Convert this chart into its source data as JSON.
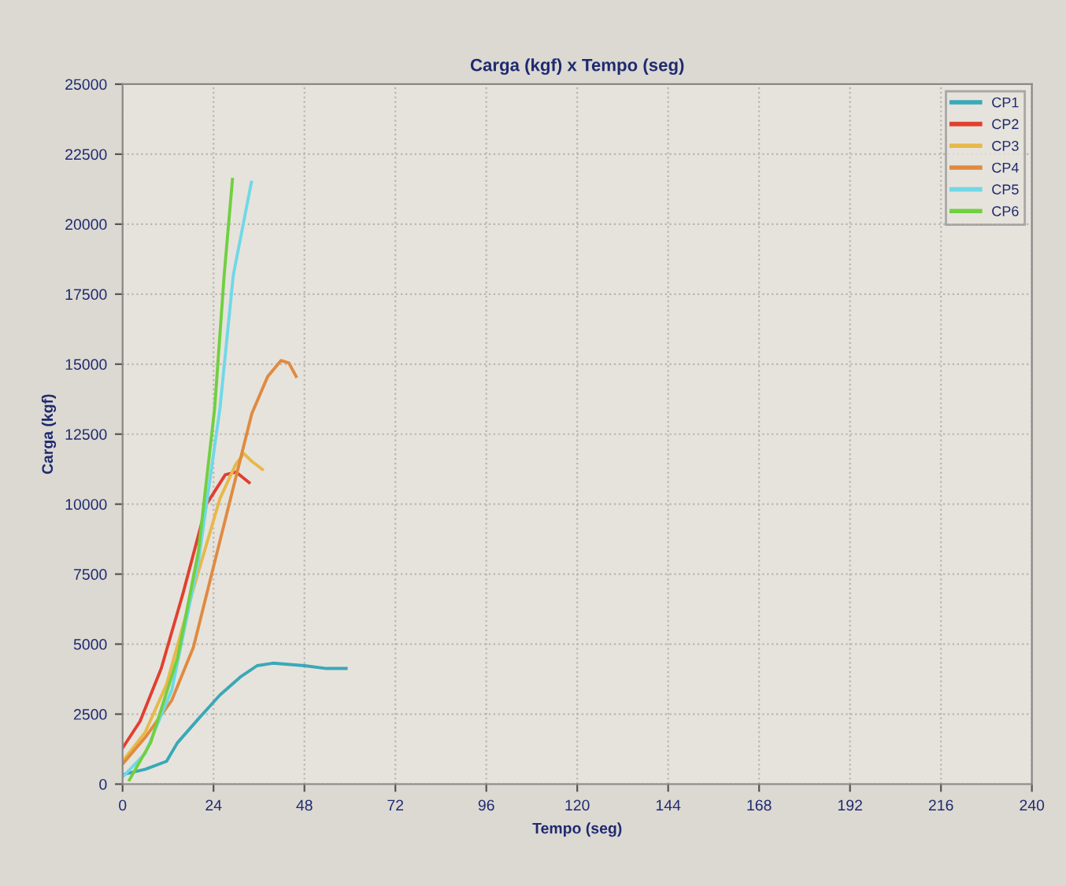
{
  "chart_data": {
    "type": "line",
    "title": "Carga (kgf) x Tempo (seg)",
    "xlabel": "Tempo (seg)",
    "ylabel": "Carga (kgf)",
    "xlim": [
      0,
      240
    ],
    "xticks": [
      0,
      24,
      48,
      72,
      96,
      120,
      144,
      168,
      192,
      216,
      240
    ],
    "ylim": [
      0,
      25000
    ],
    "yticks": [
      0,
      2500,
      5000,
      7500,
      10000,
      12500,
      15000,
      17500,
      20000,
      22500,
      25000
    ],
    "grid": true,
    "legend": "top right",
    "line_style": "solid",
    "marker": "none",
    "series": [
      {
        "name": "CP1",
        "color": "#3aa8b8",
        "x": [
          0,
          6,
          11.6,
          14.5,
          20,
          25.7,
          31.3,
          35.5,
          39.7,
          48,
          53.8,
          59
        ],
        "values": [
          340,
          530,
          815,
          1480,
          2330,
          3185,
          3850,
          4230,
          4320,
          4230,
          4130,
          4130
        ]
      },
      {
        "name": "CP2",
        "color": "#e04030",
        "x": [
          0,
          4.6,
          10.2,
          15.9,
          22.2,
          27.1,
          29.9,
          33.4
        ],
        "values": [
          1290,
          2240,
          4130,
          6790,
          10010,
          11050,
          11150,
          10770
        ]
      },
      {
        "name": "CP3",
        "color": "#e8b848",
        "x": [
          0,
          6,
          11.6,
          18.7,
          25.7,
          29.9,
          32,
          34.1,
          36.9
        ],
        "values": [
          815,
          1860,
          3560,
          6980,
          10200,
          11430,
          11810,
          11530,
          11240
        ]
      },
      {
        "name": "CP4",
        "color": "#e08a40",
        "x": [
          0,
          6,
          13,
          18.7,
          24.3,
          29.9,
          34.1,
          38.3,
          41.8,
          43.9,
          45.8
        ],
        "values": [
          720,
          1670,
          3000,
          4890,
          7930,
          10960,
          13230,
          14560,
          15130,
          15040,
          14560
        ]
      },
      {
        "name": "CP5",
        "color": "#70d8e8",
        "x": [
          0,
          6,
          13,
          20,
          25.7,
          29.2,
          34
        ],
        "values": [
          250,
          1100,
          3370,
          7930,
          13420,
          18160,
          21500
        ]
      },
      {
        "name": "CP6",
        "color": "#70d040",
        "x": [
          1.8,
          7.4,
          14.5,
          20,
          24.3,
          26.8,
          29
        ],
        "values": [
          150,
          1480,
          4510,
          8300,
          13420,
          18160,
          21600
        ]
      }
    ]
  }
}
